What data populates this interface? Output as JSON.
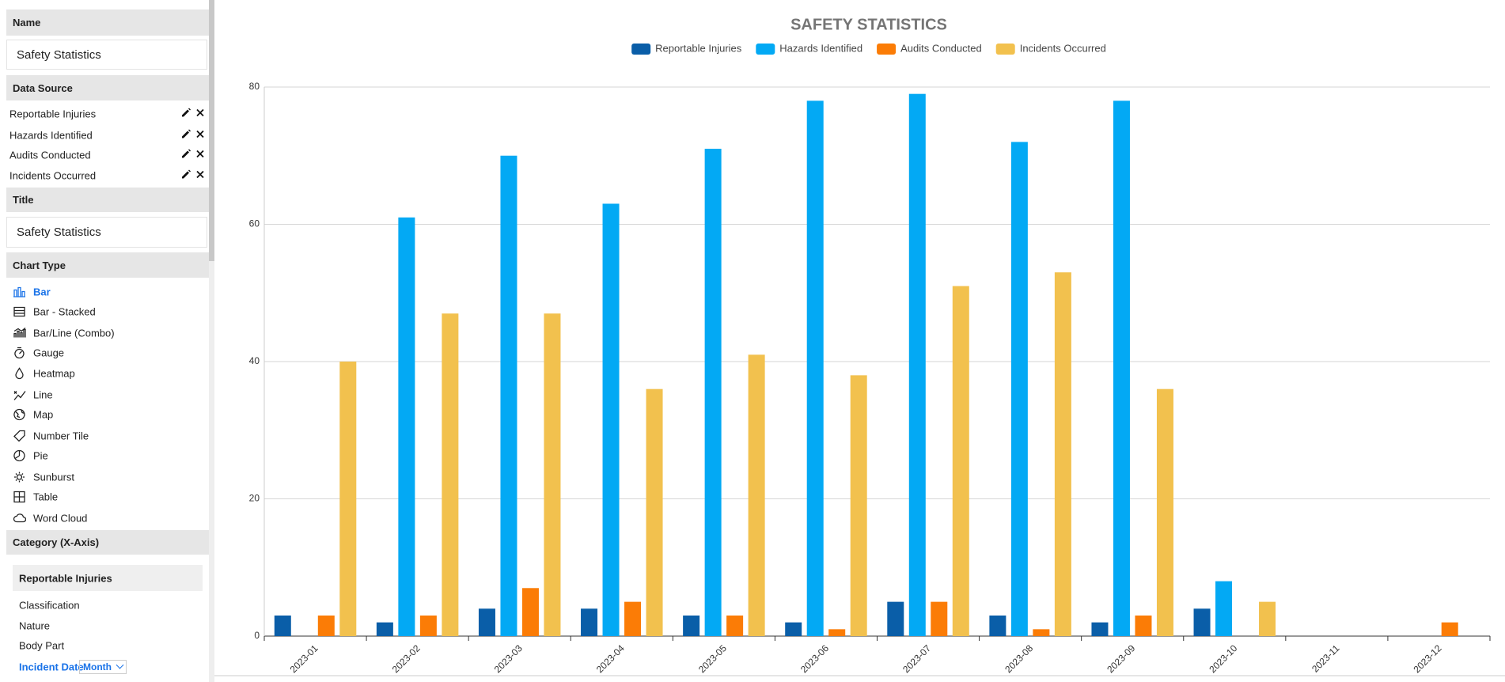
{
  "sidebar": {
    "name_header": "Name",
    "name_value": "Safety Statistics",
    "data_source_header": "Data Source",
    "data_sources": [
      "Reportable Injuries",
      "Hazards Identified",
      "Audits Conducted",
      "Incidents Occurred"
    ],
    "title_header": "Title",
    "title_value": "Safety Statistics",
    "chart_type_header": "Chart Type",
    "chart_types": [
      "Bar",
      "Bar - Stacked",
      "Bar/Line (Combo)",
      "Gauge",
      "Heatmap",
      "Line",
      "Map",
      "Number Tile",
      "Pie",
      "Sunburst",
      "Table",
      "Word Cloud"
    ],
    "category_header": "Category (X-Axis)",
    "category_fields": [
      "Reportable Injuries",
      "Classification",
      "Nature",
      "Body Part",
      "Incident Date"
    ],
    "date_grouping": "Month"
  },
  "chart_data": {
    "type": "bar",
    "title": "SAFETY STATISTICS",
    "categories": [
      "2023-01",
      "2023-02",
      "2023-03",
      "2023-04",
      "2023-05",
      "2023-06",
      "2023-07",
      "2023-08",
      "2023-09",
      "2023-10",
      "2023-11",
      "2023-12"
    ],
    "series": [
      {
        "name": "Reportable Injuries",
        "color": "#0a5ea8",
        "values": [
          3,
          2,
          4,
          4,
          3,
          2,
          5,
          3,
          2,
          4,
          0,
          0
        ]
      },
      {
        "name": "Hazards Identified",
        "color": "#03a9f4",
        "values": [
          0,
          61,
          70,
          63,
          71,
          78,
          79,
          72,
          78,
          8,
          0,
          0
        ]
      },
      {
        "name": "Audits Conducted",
        "color": "#fb7c06",
        "values": [
          3,
          3,
          7,
          5,
          3,
          1,
          5,
          1,
          3,
          0,
          0,
          2
        ]
      },
      {
        "name": "Incidents Occurred",
        "color": "#f2c14e",
        "values": [
          40,
          47,
          47,
          36,
          41,
          38,
          51,
          53,
          36,
          5,
          0,
          0
        ]
      }
    ],
    "ylim": [
      0,
      80
    ],
    "yticks": [
      0,
      20,
      40,
      60,
      80
    ],
    "grid": true,
    "legend": "top"
  }
}
